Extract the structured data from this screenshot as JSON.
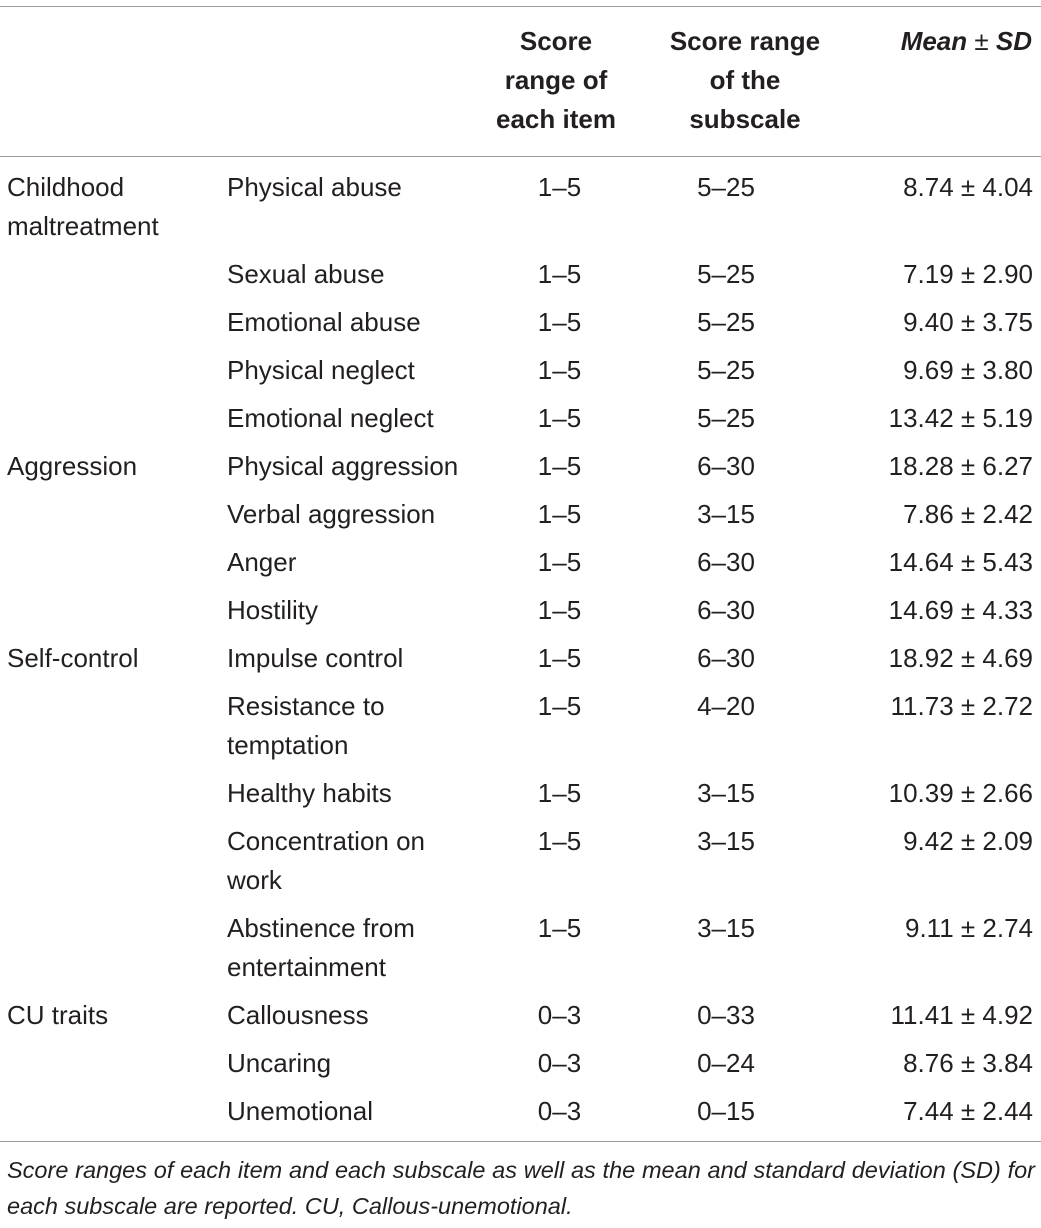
{
  "header": {
    "col_item": [
      "Score",
      "range of",
      "each item"
    ],
    "col_subscale": [
      "Score range",
      "of the",
      "subscale"
    ],
    "col_mean_italic_1": "Mean",
    "col_mean_pm": " ± ",
    "col_mean_italic_2": "SD"
  },
  "rows": [
    {
      "category": "Childhood maltreatment",
      "subscale": "Physical abuse",
      "item_range": "1–5",
      "subscale_range": "5–25",
      "mean_sd": "8.74 ± 4.04"
    },
    {
      "category": "",
      "subscale": "Sexual abuse",
      "item_range": "1–5",
      "subscale_range": "5–25",
      "mean_sd": "7.19 ± 2.90"
    },
    {
      "category": "",
      "subscale": "Emotional abuse",
      "item_range": "1–5",
      "subscale_range": "5–25",
      "mean_sd": "9.40 ± 3.75"
    },
    {
      "category": "",
      "subscale": "Physical neglect",
      "item_range": "1–5",
      "subscale_range": "5–25",
      "mean_sd": "9.69 ± 3.80"
    },
    {
      "category": "",
      "subscale": "Emotional neglect",
      "item_range": "1–5",
      "subscale_range": "5–25",
      "mean_sd": "13.42 ± 5.19"
    },
    {
      "category": "Aggression",
      "subscale": "Physical aggression",
      "item_range": "1–5",
      "subscale_range": "6–30",
      "mean_sd": "18.28 ± 6.27"
    },
    {
      "category": "",
      "subscale": "Verbal aggression",
      "item_range": "1–5",
      "subscale_range": "3–15",
      "mean_sd": "7.86 ± 2.42"
    },
    {
      "category": "",
      "subscale": "Anger",
      "item_range": "1–5",
      "subscale_range": "6–30",
      "mean_sd": "14.64 ± 5.43"
    },
    {
      "category": "",
      "subscale": "Hostility",
      "item_range": "1–5",
      "subscale_range": "6–30",
      "mean_sd": "14.69 ± 4.33"
    },
    {
      "category": "Self-control",
      "subscale": "Impulse control",
      "item_range": "1–5",
      "subscale_range": "6–30",
      "mean_sd": "18.92 ± 4.69"
    },
    {
      "category": "",
      "subscale": "Resistance to temptation",
      "item_range": "1–5",
      "subscale_range": "4–20",
      "mean_sd": "11.73 ± 2.72"
    },
    {
      "category": "",
      "subscale": "Healthy habits",
      "item_range": "1–5",
      "subscale_range": "3–15",
      "mean_sd": "10.39 ± 2.66"
    },
    {
      "category": "",
      "subscale": "Concentration on work",
      "item_range": "1–5",
      "subscale_range": "3–15",
      "mean_sd": "9.42 ± 2.09"
    },
    {
      "category": "",
      "subscale": "Abstinence from entertainment",
      "item_range": "1–5",
      "subscale_range": "3–15",
      "mean_sd": "9.11 ± 2.74"
    },
    {
      "category": "CU traits",
      "subscale": "Callousness",
      "item_range": "0–3",
      "subscale_range": "0–33",
      "mean_sd": "11.41 ± 4.92"
    },
    {
      "category": "",
      "subscale": "Uncaring",
      "item_range": "0–3",
      "subscale_range": "0–24",
      "mean_sd": "8.76 ± 3.84"
    },
    {
      "category": "",
      "subscale": "Unemotional",
      "item_range": "0–3",
      "subscale_range": "0–15",
      "mean_sd": "7.44 ± 2.44"
    }
  ],
  "footnote": "Score ranges of each item and each subscale as well as the mean and standard deviation (SD) for each subscale are reported. CU, Callous-unemotional."
}
